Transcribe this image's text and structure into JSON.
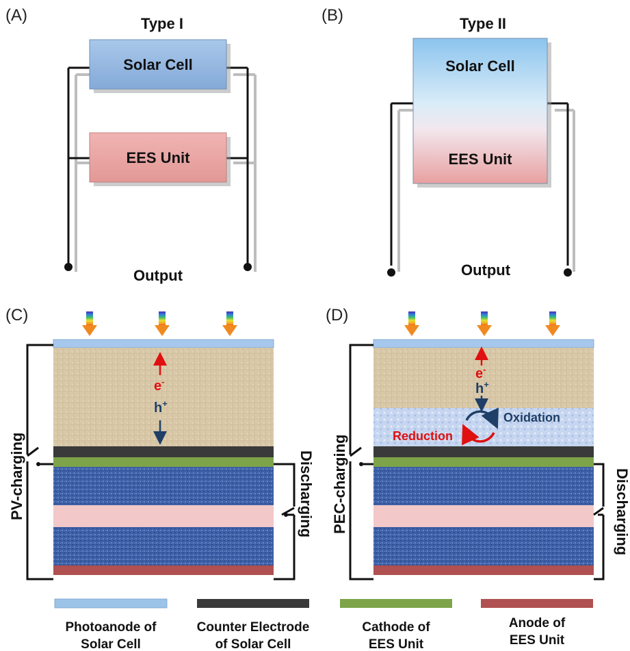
{
  "panels": {
    "a": {
      "letter": "(A)",
      "title": "Type I",
      "top_box": "Solar Cell",
      "bottom_box": "EES Unit",
      "output": "Output"
    },
    "b": {
      "letter": "(B)",
      "title": "Type II",
      "top_text": "Solar Cell",
      "bottom_text": "EES Unit",
      "output": "Output"
    },
    "c": {
      "letter": "(C)",
      "left_label": "PV-charging",
      "right_label": "Discharging",
      "electron": "e",
      "electron_sup": "-",
      "hole": "h",
      "hole_sup": "+"
    },
    "d": {
      "letter": "(D)",
      "left_label": "PEC-charging",
      "right_label": "Discharging",
      "electron": "e",
      "electron_sup": "-",
      "hole": "h",
      "hole_sup": "+",
      "oxidation": "Oxidation",
      "reduction": "Reduction"
    }
  },
  "legend": [
    {
      "line1": "Photoanode of",
      "line2": "Solar Cell",
      "color": "#9cc3e8"
    },
    {
      "line1": "Counter Electrode",
      "line2": "of Solar Cell",
      "color": "#3a3a3a"
    },
    {
      "line1": "Cathode of",
      "line2": "EES Unit",
      "color": "#7ea44a"
    },
    {
      "line1": "Anode of",
      "line2": "EES Unit",
      "color": "#b05050"
    }
  ],
  "colors": {
    "solar_cell": "#8fb4dd",
    "ees_unit": "#e8a2a0",
    "sand": "#d8c8a8",
    "blue_layer": "#3f63a8",
    "pink_layer": "#f2c8c8",
    "electrolyte": "#c8d8f0",
    "electron_color": "#e01010",
    "hole_color": "#1f3f66"
  }
}
